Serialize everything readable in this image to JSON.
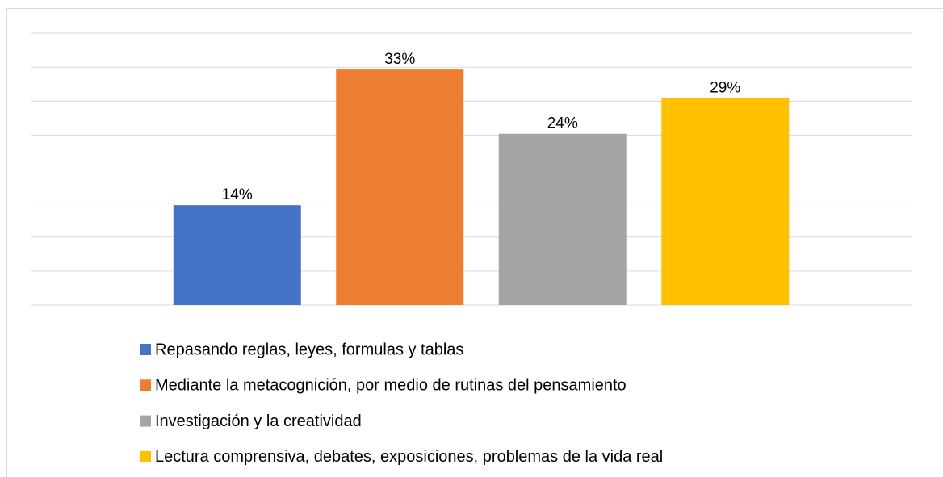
{
  "chart_data": {
    "type": "bar",
    "series": [
      {
        "name": "Repasando reglas, leyes, formulas y tablas",
        "color": "#4472c4",
        "values": [
          14
        ],
        "value_labels": [
          "14%"
        ]
      },
      {
        "name": "Mediante la metacognición, por medio de rutinas del pensamiento",
        "color": "#ed7d31",
        "values": [
          33
        ],
        "value_labels": [
          "33%"
        ]
      },
      {
        "name": "Investigación y la creatividad",
        "color": "#a5a5a5",
        "values": [
          24
        ],
        "value_labels": [
          "24%"
        ]
      },
      {
        "name": "Lectura comprensiva, debates, exposiciones, problemas de la vida real",
        "color": "#ffc000",
        "values": [
          29
        ],
        "value_labels": [
          "29%"
        ]
      }
    ],
    "ylim": [
      0,
      38.1
    ],
    "yticks": [
      0,
      4.76,
      9.52,
      14.29,
      19.05,
      23.81,
      28.57,
      33.33,
      38.1
    ],
    "grid": true,
    "legend": "bottom"
  }
}
